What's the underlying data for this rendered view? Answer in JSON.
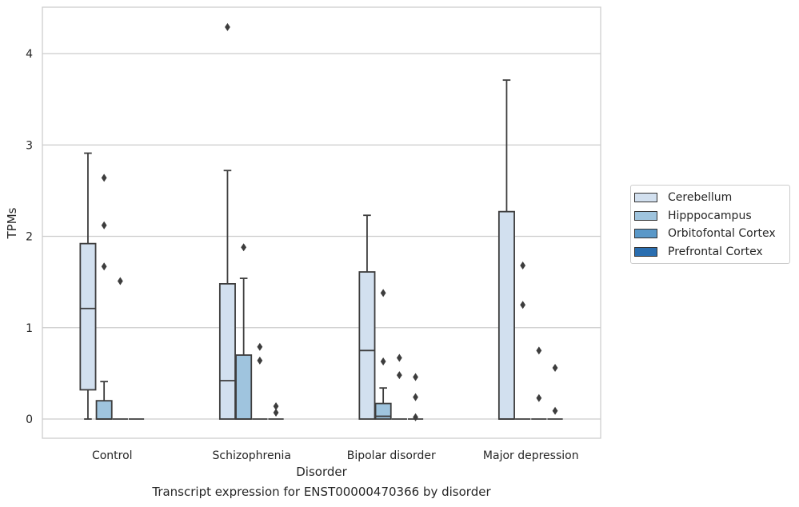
{
  "chart_data": {
    "type": "box",
    "title": "Transcript expression for ENST00000470366 by disorder",
    "xlabel": "Disorder",
    "ylabel": "TPMs",
    "ylim": [
      -0.21,
      4.5
    ],
    "yticks": [
      0,
      1,
      2,
      3,
      4
    ],
    "grid": "horizontal",
    "legend_position": "right",
    "categories": [
      "Control",
      "Schizophrenia",
      "Bipolar disorder",
      "Major depression"
    ],
    "series": [
      {
        "name": "Cerebellum",
        "color": "#d2e0ef",
        "boxes": [
          {
            "whisker_low": 0,
            "q1": 0.32,
            "median": 1.21,
            "q3": 1.92,
            "whisker_high": 2.91,
            "outliers": []
          },
          {
            "whisker_low": 0,
            "q1": 0,
            "median": 0.42,
            "q3": 1.48,
            "whisker_high": 2.72,
            "outliers": [
              4.29
            ]
          },
          {
            "whisker_low": 0,
            "q1": 0,
            "median": 0.75,
            "q3": 1.61,
            "whisker_high": 2.23,
            "outliers": []
          },
          {
            "whisker_low": 0,
            "q1": 0,
            "median": 0,
            "q3": 2.27,
            "whisker_high": 3.71,
            "outliers": []
          }
        ]
      },
      {
        "name": "Hipppocampus",
        "color": "#9fc4de",
        "boxes": [
          {
            "whisker_low": 0,
            "q1": 0,
            "median": 0,
            "q3": 0.2,
            "whisker_high": 0.41,
            "outliers": [
              2.64,
              2.12,
              1.67
            ]
          },
          {
            "whisker_low": 0,
            "q1": 0,
            "median": 0,
            "q3": 0.7,
            "whisker_high": 1.54,
            "outliers": [
              1.88
            ]
          },
          {
            "whisker_low": 0,
            "q1": 0,
            "median": 0.03,
            "q3": 0.17,
            "whisker_high": 0.34,
            "outliers": [
              1.38,
              0.63
            ]
          },
          {
            "whisker_low": 0,
            "q1": 0,
            "median": 0,
            "q3": 0,
            "whisker_high": 0,
            "outliers": [
              1.68,
              1.25
            ]
          }
        ]
      },
      {
        "name": "Orbitofontal Cortex",
        "color": "#5a98c8",
        "boxes": [
          {
            "whisker_low": 0,
            "q1": 0,
            "median": 0,
            "q3": 0,
            "whisker_high": 0,
            "outliers": [
              1.51
            ]
          },
          {
            "whisker_low": 0,
            "q1": 0,
            "median": 0,
            "q3": 0,
            "whisker_high": 0,
            "outliers": [
              0.79,
              0.64
            ]
          },
          {
            "whisker_low": 0,
            "q1": 0,
            "median": 0,
            "q3": 0,
            "whisker_high": 0,
            "outliers": [
              0.67,
              0.48
            ]
          },
          {
            "whisker_low": 0,
            "q1": 0,
            "median": 0,
            "q3": 0,
            "whisker_high": 0,
            "outliers": [
              0.75,
              0.23
            ]
          }
        ]
      },
      {
        "name": "Prefrontal Cortex",
        "color": "#2a6eb0",
        "boxes": [
          {
            "whisker_low": 0,
            "q1": 0,
            "median": 0,
            "q3": 0,
            "whisker_high": 0,
            "outliers": []
          },
          {
            "whisker_low": 0,
            "q1": 0,
            "median": 0,
            "q3": 0,
            "whisker_high": 0,
            "outliers": [
              0.14,
              0.07
            ]
          },
          {
            "whisker_low": 0,
            "q1": 0,
            "median": 0,
            "q3": 0,
            "whisker_high": 0,
            "outliers": [
              0.46,
              0.24,
              0.02
            ]
          },
          {
            "whisker_low": 0,
            "q1": 0,
            "median": 0,
            "q3": 0,
            "whisker_high": 0,
            "outliers": [
              0.56,
              0.09
            ]
          }
        ]
      }
    ]
  }
}
